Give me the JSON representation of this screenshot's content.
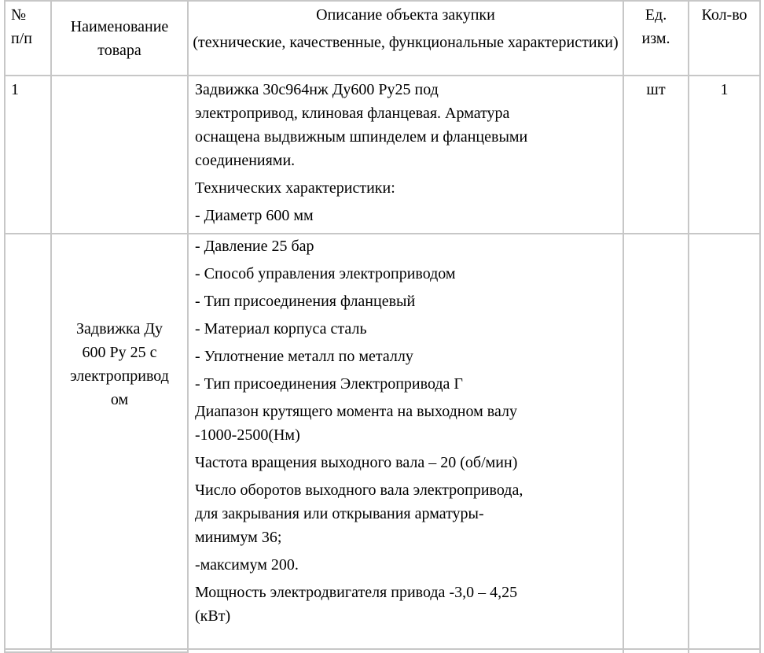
{
  "colors": {
    "background": "#ffffff",
    "text": "#000000",
    "border": "#c7c7c7"
  },
  "header": {
    "number_lines": [
      "№",
      "п/п"
    ],
    "product_name_lines": [
      "Наименование",
      "товара"
    ],
    "description_paragraphs": [
      "Описание объекта закупки",
      "(технические, качественные, функциональные характеристики)"
    ],
    "unit_lines": [
      "Ед.",
      "изм."
    ],
    "quantity_label": "Кол-во"
  },
  "item": {
    "number": "1",
    "name_full": "Задвижка Ду 600 Ру 25 с электроприводом",
    "name_lines": [
      "Задвижка Ду",
      "600 Ру 25 с",
      "электропривод",
      "ом"
    ],
    "unit": "шт",
    "quantity": "1",
    "description_part1": [
      [
        "Задвижка 30с964нж Ду600 Ру25 под",
        "электропривод, клиновая фланцевая. Арматура",
        "оснащена выдвижным шпинделем и фланцевыми",
        "соединениями."
      ],
      [
        "Технических характеристики:"
      ],
      [
        "- Диаметр 600 мм"
      ]
    ],
    "description_part2": [
      [
        "- Давление 25 бар"
      ],
      [
        "- Способ управления электроприводом"
      ],
      [
        "- Тип присоединения фланцевый"
      ],
      [
        "- Материал корпуса сталь"
      ],
      [
        "- Уплотнение металл по металлу"
      ],
      [
        "- Тип присоединения Электропривода Г"
      ],
      [
        "Диапазон крутящего момента на выходном валу",
        "-1000-2500(Нм)"
      ],
      [
        "Частота вращения выходного вала – 20 (об/мин)"
      ],
      [
        "Число оборотов выходного вала электропривода,",
        "для закрывания или открывания арматуры-",
        "минимум 36;"
      ],
      [
        "-максимум 200."
      ],
      [
        "Мощность электродвигателя привода -3,0 – 4,25",
        "(кВт)"
      ]
    ]
  }
}
